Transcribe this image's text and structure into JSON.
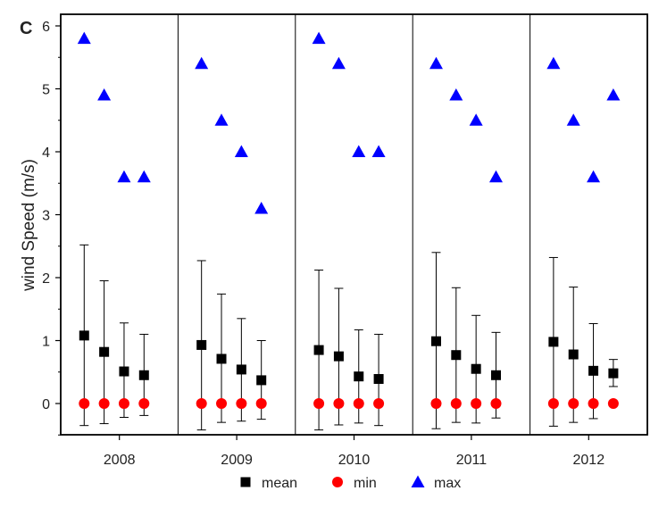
{
  "panel_label": "C",
  "chart_data": {
    "type": "scatter",
    "title": "",
    "xlabel": "",
    "ylabel": "wind Speed (m/s)",
    "ylim": [
      -0.5,
      6.2
    ],
    "yticks": [
      0,
      1,
      2,
      3,
      4,
      5,
      6
    ],
    "categories": [
      "2008",
      "2009",
      "2010",
      "2011",
      "2012"
    ],
    "points_per_category": 4,
    "series": [
      {
        "name": "mean",
        "marker": "square",
        "color": "#000000",
        "values": [
          [
            1.08,
            0.82,
            0.51,
            0.45
          ],
          [
            0.93,
            0.71,
            0.54,
            0.37
          ],
          [
            0.85,
            0.75,
            0.43,
            0.39
          ],
          [
            0.99,
            0.77,
            0.55,
            0.45
          ],
          [
            0.98,
            0.78,
            0.52,
            0.48
          ]
        ],
        "error_low": [
          [
            -0.35,
            -0.32,
            -0.22,
            -0.19
          ],
          [
            -0.42,
            -0.3,
            -0.28,
            -0.25
          ],
          [
            -0.42,
            -0.34,
            -0.31,
            -0.35
          ],
          [
            -0.4,
            -0.3,
            -0.31,
            -0.23
          ],
          [
            -0.36,
            -0.3,
            -0.24,
            0.27
          ]
        ],
        "error_high": [
          [
            2.52,
            1.95,
            1.28,
            1.1
          ],
          [
            2.27,
            1.74,
            1.35,
            1.0
          ],
          [
            2.12,
            1.83,
            1.17,
            1.1
          ],
          [
            2.4,
            1.84,
            1.4,
            1.13
          ],
          [
            2.32,
            1.85,
            1.27,
            0.7
          ]
        ]
      },
      {
        "name": "min",
        "marker": "circle",
        "color": "#ff0000",
        "values": [
          [
            0,
            0,
            0,
            0
          ],
          [
            0,
            0,
            0,
            0
          ],
          [
            0,
            0,
            0,
            0
          ],
          [
            0,
            0,
            0,
            0
          ],
          [
            0,
            0,
            0,
            0
          ]
        ]
      },
      {
        "name": "max",
        "marker": "triangle",
        "color": "#0000ff",
        "values": [
          [
            5.8,
            4.9,
            3.6,
            3.6
          ],
          [
            5.4,
            4.5,
            4.0,
            3.1
          ],
          [
            5.8,
            5.4,
            4.0,
            4.0
          ],
          [
            5.4,
            4.9,
            4.5,
            3.6
          ],
          [
            5.4,
            4.5,
            3.6,
            4.9
          ]
        ]
      }
    ],
    "legend": {
      "placement": "bottom-center",
      "entries": [
        "mean",
        "min",
        "max"
      ]
    },
    "grid": false,
    "panel_dividers": true
  }
}
